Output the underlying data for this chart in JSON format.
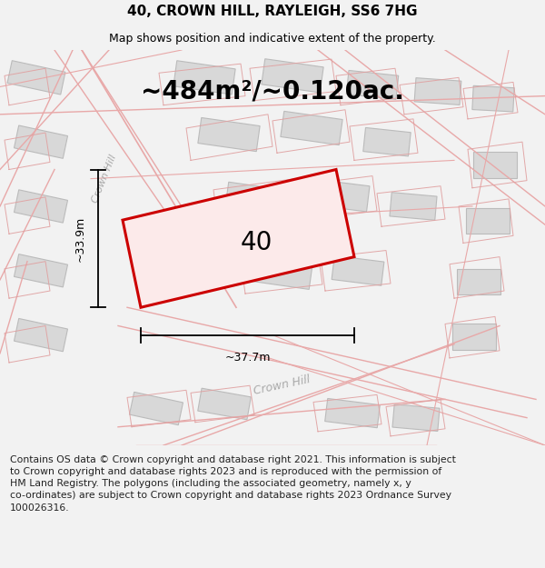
{
  "title": "40, CROWN HILL, RAYLEIGH, SS6 7HG",
  "subtitle": "Map shows position and indicative extent of the property.",
  "area_text": "~484m²/~0.120ac.",
  "width_label": "~37.7m",
  "height_label": "~33.9m",
  "property_number": "40",
  "street_label_bottom": "Crown Hill",
  "street_label_left": "Crown Hill",
  "footer_line1": "Contains OS data © Crown copyright and database right 2021. This information is subject",
  "footer_line2": "to Crown copyright and database rights 2023 and is reproduced with the permission of",
  "footer_line3": "HM Land Registry. The polygons (including the associated geometry, namely x, y",
  "footer_line4": "co-ordinates) are subject to Crown copyright and database rights 2023 Ordnance Survey",
  "footer_line5": "100026316.",
  "bg_color": "#f2f2f2",
  "map_bg": "#ffffff",
  "building_fill": "#d8d8d8",
  "building_edge": "#bbbbbb",
  "road_line_color": "#e8a8a8",
  "plot_line_color": "#e0a0a0",
  "highlight_color": "#cc0000",
  "highlight_fill": "#fceaea",
  "dim_line_color": "#000000",
  "street_label_color": "#aaaaaa",
  "title_fontsize": 11,
  "subtitle_fontsize": 9,
  "area_fontsize": 20,
  "label_fontsize": 9,
  "footer_fontsize": 7.8,
  "number_fontsize": 20
}
